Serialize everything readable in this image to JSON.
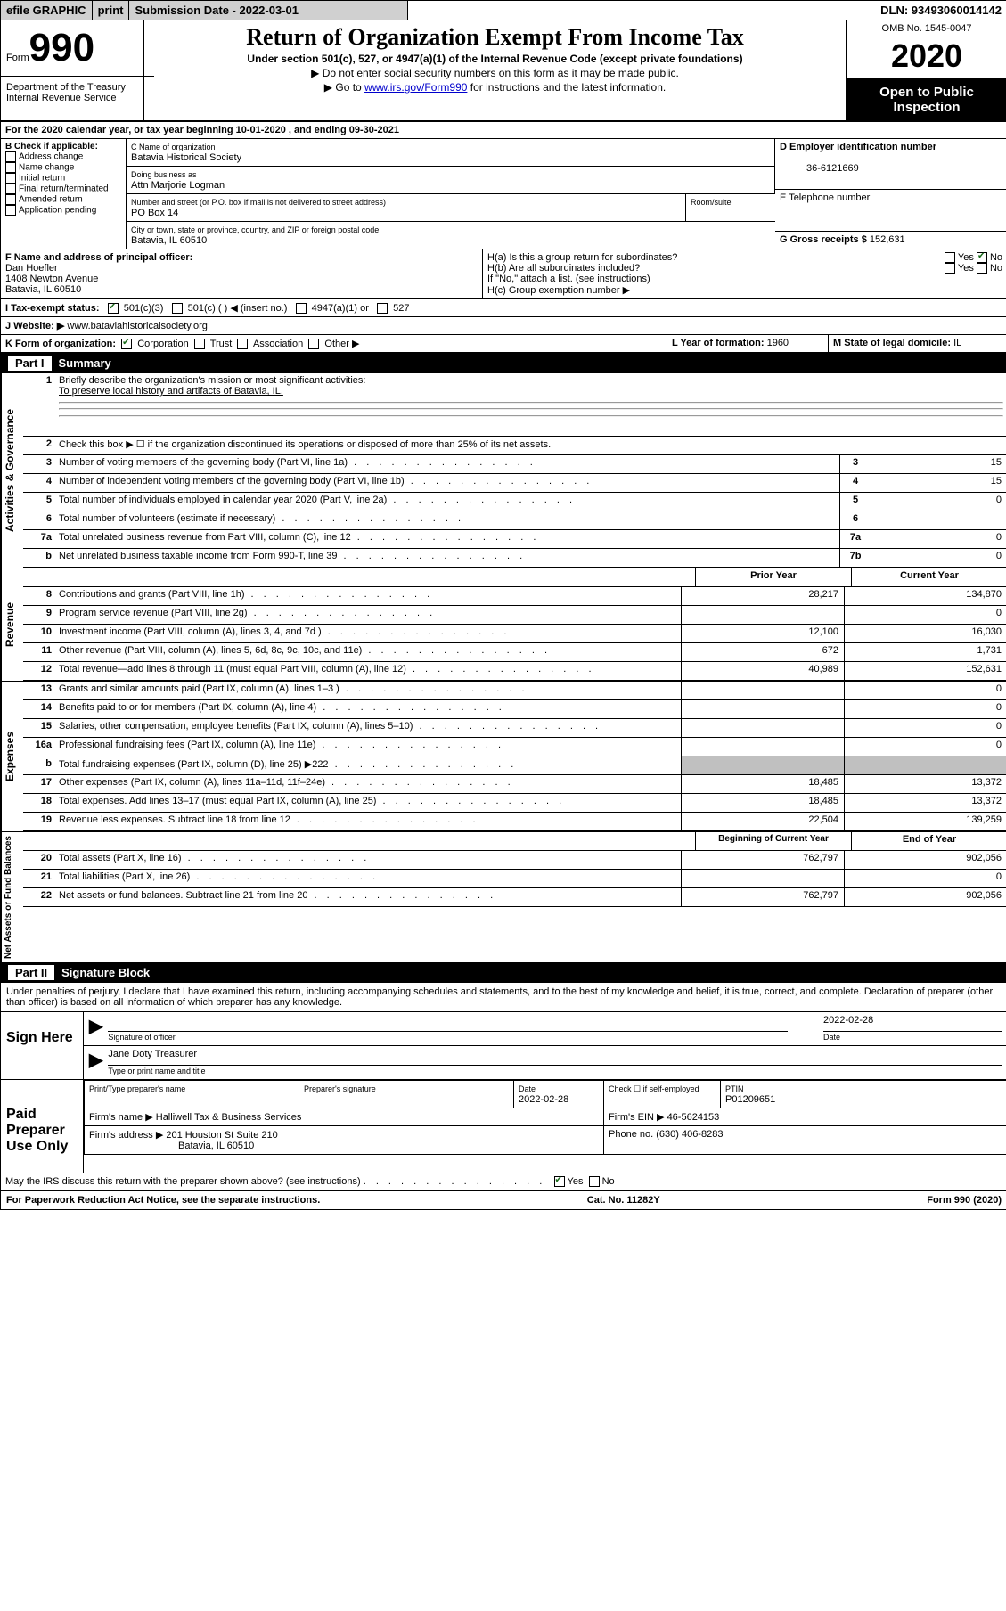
{
  "topbar": {
    "efile": "efile GRAPHIC",
    "print": "print",
    "submission": "Submission Date - 2022-03-01",
    "dln": "DLN: 93493060014142"
  },
  "header": {
    "form_word": "Form",
    "form_num": "990",
    "title": "Return of Organization Exempt From Income Tax",
    "sub1": "Under section 501(c), 527, or 4947(a)(1) of the Internal Revenue Code (except private foundations)",
    "sub2": "▶ Do not enter social security numbers on this form as it may be made public.",
    "sub3_pre": "▶ Go to ",
    "sub3_link": "www.irs.gov/Form990",
    "sub3_post": " for instructions and the latest information.",
    "dept": "Department of the Treasury\nInternal Revenue Service",
    "omb": "OMB No. 1545-0047",
    "year": "2020",
    "open": "Open to Public Inspection"
  },
  "line_a": "For the 2020 calendar year, or tax year beginning 10-01-2020    , and ending 09-30-2021",
  "box_b": {
    "label": "B Check if applicable:",
    "items": [
      "Address change",
      "Name change",
      "Initial return",
      "Final return/terminated",
      "Amended return",
      "Application pending"
    ]
  },
  "box_c": {
    "label": "C Name of organization",
    "name": "Batavia Historical Society",
    "dba_label": "Doing business as",
    "dba": "Attn Marjorie Logman",
    "street_label": "Number and street (or P.O. box if mail is not delivered to street address)",
    "street": "PO Box 14",
    "room_label": "Room/suite",
    "city_label": "City or town, state or province, country, and ZIP or foreign postal code",
    "city": "Batavia, IL  60510"
  },
  "box_d": {
    "label": "D Employer identification number",
    "value": "36-6121669"
  },
  "box_e": {
    "label": "E Telephone number",
    "value": ""
  },
  "box_g": {
    "label": "G Gross receipts $",
    "value": "152,631"
  },
  "box_f": {
    "label": "F  Name and address of principal officer:",
    "name": "Dan Hoefler",
    "addr1": "1408 Newton Avenue",
    "addr2": "Batavia, IL  60510"
  },
  "box_h": {
    "ha": "H(a)  Is this a group return for subordinates?",
    "hb": "H(b)  Are all subordinates included?",
    "hb_note": "If \"No,\" attach a list. (see instructions)",
    "hc": "H(c)  Group exemption number ▶",
    "yes": "Yes",
    "no": "No"
  },
  "box_i": {
    "label": "I  Tax-exempt status:",
    "opts": [
      "501(c)(3)",
      "501(c) (  ) ◀ (insert no.)",
      "4947(a)(1) or",
      "527"
    ]
  },
  "box_j": {
    "label": "J  Website: ▶",
    "value": "  www.bataviahistoricalsociety.org"
  },
  "box_k": {
    "label": "K Form of organization:",
    "opts": [
      "Corporation",
      "Trust",
      "Association",
      "Other ▶"
    ]
  },
  "box_l": {
    "label": "L Year of formation:",
    "value": "1960"
  },
  "box_m": {
    "label": "M State of legal domicile:",
    "value": "IL"
  },
  "part1": {
    "label": "Part I",
    "title": "Summary"
  },
  "summary": {
    "q1": "Briefly describe the organization's mission or most significant activities:",
    "q1_ans": "To preserve local history and artifacts of Batavia, IL.",
    "q2": "Check this box ▶ ☐  if the organization discontinued its operations or disposed of more than 25% of its net assets.",
    "lines": [
      {
        "n": "3",
        "t": "Number of voting members of the governing body (Part VI, line 1a)",
        "box": "3",
        "v": "15"
      },
      {
        "n": "4",
        "t": "Number of independent voting members of the governing body (Part VI, line 1b)",
        "box": "4",
        "v": "15"
      },
      {
        "n": "5",
        "t": "Total number of individuals employed in calendar year 2020 (Part V, line 2a)",
        "box": "5",
        "v": "0"
      },
      {
        "n": "6",
        "t": "Total number of volunteers (estimate if necessary)",
        "box": "6",
        "v": ""
      },
      {
        "n": "7a",
        "t": "Total unrelated business revenue from Part VIII, column (C), line 12",
        "box": "7a",
        "v": "0"
      },
      {
        "n": "b",
        "t": "Net unrelated business taxable income from Form 990-T, line 39",
        "box": "7b",
        "v": "0"
      }
    ],
    "col_prior": "Prior Year",
    "col_current": "Current Year",
    "col_begin": "Beginning of Current Year",
    "col_end": "End of Year",
    "revenue": [
      {
        "n": "8",
        "t": "Contributions and grants (Part VIII, line 1h)",
        "p": "28,217",
        "c": "134,870"
      },
      {
        "n": "9",
        "t": "Program service revenue (Part VIII, line 2g)",
        "p": "",
        "c": "0"
      },
      {
        "n": "10",
        "t": "Investment income (Part VIII, column (A), lines 3, 4, and 7d )",
        "p": "12,100",
        "c": "16,030"
      },
      {
        "n": "11",
        "t": "Other revenue (Part VIII, column (A), lines 5, 6d, 8c, 9c, 10c, and 11e)",
        "p": "672",
        "c": "1,731"
      },
      {
        "n": "12",
        "t": "Total revenue—add lines 8 through 11 (must equal Part VIII, column (A), line 12)",
        "p": "40,989",
        "c": "152,631"
      }
    ],
    "expenses": [
      {
        "n": "13",
        "t": "Grants and similar amounts paid (Part IX, column (A), lines 1–3 )",
        "p": "",
        "c": "0"
      },
      {
        "n": "14",
        "t": "Benefits paid to or for members (Part IX, column (A), line 4)",
        "p": "",
        "c": "0"
      },
      {
        "n": "15",
        "t": "Salaries, other compensation, employee benefits (Part IX, column (A), lines 5–10)",
        "p": "",
        "c": "0"
      },
      {
        "n": "16a",
        "t": "Professional fundraising fees (Part IX, column (A), line 11e)",
        "p": "",
        "c": "0"
      },
      {
        "n": "b",
        "t": "Total fundraising expenses (Part IX, column (D), line 25) ▶222",
        "p": "GRAY",
        "c": "GRAY"
      },
      {
        "n": "17",
        "t": "Other expenses (Part IX, column (A), lines 11a–11d, 11f–24e)",
        "p": "18,485",
        "c": "13,372"
      },
      {
        "n": "18",
        "t": "Total expenses. Add lines 13–17 (must equal Part IX, column (A), line 25)",
        "p": "18,485",
        "c": "13,372"
      },
      {
        "n": "19",
        "t": "Revenue less expenses. Subtract line 18 from line 12",
        "p": "22,504",
        "c": "139,259"
      }
    ],
    "netassets": [
      {
        "n": "20",
        "t": "Total assets (Part X, line 16)",
        "p": "762,797",
        "c": "902,056"
      },
      {
        "n": "21",
        "t": "Total liabilities (Part X, line 26)",
        "p": "",
        "c": "0"
      },
      {
        "n": "22",
        "t": "Net assets or fund balances. Subtract line 21 from line 20",
        "p": "762,797",
        "c": "902,056"
      }
    ]
  },
  "vlabels": {
    "gov": "Activities & Governance",
    "rev": "Revenue",
    "exp": "Expenses",
    "net": "Net Assets or Fund Balances"
  },
  "part2": {
    "label": "Part II",
    "title": "Signature Block"
  },
  "sig": {
    "declaration": "Under penalties of perjury, I declare that I have examined this return, including accompanying schedules and statements, and to the best of my knowledge and belief, it is true, correct, and complete. Declaration of preparer (other than officer) is based on all information of which preparer has any knowledge.",
    "sign_here": "Sign Here",
    "sig_officer": "Signature of officer",
    "date": "2022-02-28",
    "date_label": "Date",
    "officer_name": "Jane Doty  Treasurer",
    "type_label": "Type or print name and title"
  },
  "prep": {
    "title": "Paid Preparer Use Only",
    "h_name": "Print/Type preparer's name",
    "h_sig": "Preparer's signature",
    "h_date": "Date",
    "date": "2022-02-28",
    "self": "Check ☐ if self-employed",
    "ptin_label": "PTIN",
    "ptin": "P01209651",
    "firm_name_label": "Firm's name    ▶",
    "firm_name": "Halliwell Tax & Business Services",
    "firm_ein_label": "Firm's EIN ▶",
    "firm_ein": "46-5624153",
    "firm_addr_label": "Firm's address ▶",
    "firm_addr1": "201 Houston St Suite 210",
    "firm_addr2": "Batavia, IL  60510",
    "phone_label": "Phone no.",
    "phone": "(630) 406-8283"
  },
  "discuss": {
    "text": "May the IRS discuss this return with the preparer shown above? (see instructions)",
    "yes": "Yes",
    "no": "No"
  },
  "footer": {
    "left": "For Paperwork Reduction Act Notice, see the separate instructions.",
    "mid": "Cat. No. 11282Y",
    "right": "Form 990 (2020)"
  }
}
